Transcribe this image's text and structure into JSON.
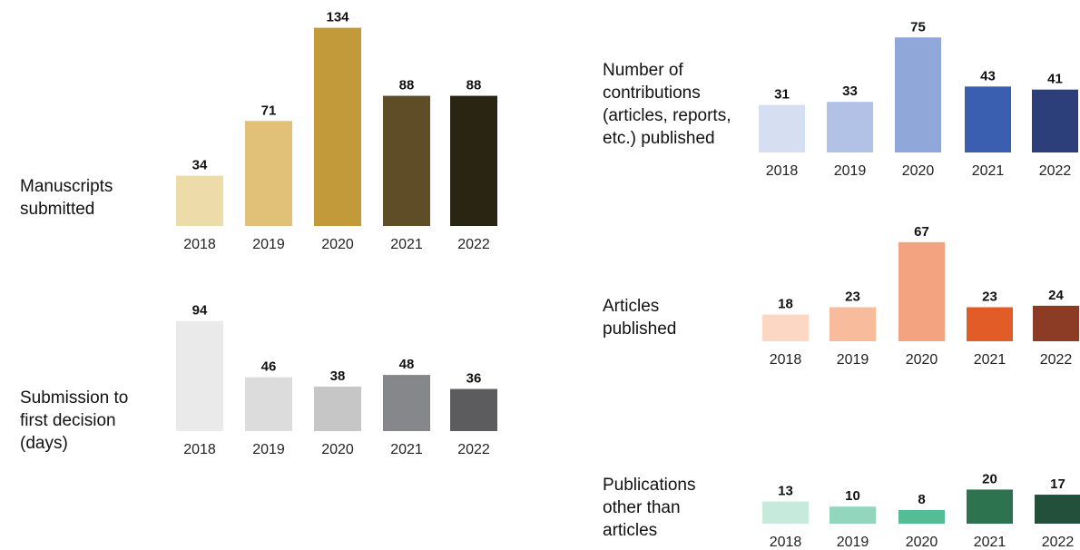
{
  "chart_data": [
    {
      "type": "bar",
      "label_lines": [
        "Manuscripts",
        "submitted"
      ],
      "categories": [
        "2018",
        "2019",
        "2020",
        "2021",
        "2022"
      ],
      "values": [
        34,
        71,
        134,
        88,
        88
      ],
      "colors": [
        "#eddcaa",
        "#e1c078",
        "#c29a3a",
        "#5e4d27",
        "#2a2412"
      ]
    },
    {
      "type": "bar",
      "label_lines": [
        "Submission to",
        "first decision",
        "(days)"
      ],
      "categories": [
        "2018",
        "2019",
        "2020",
        "2021",
        "2022"
      ],
      "values": [
        94,
        46,
        38,
        48,
        36
      ],
      "colors": [
        "#eaeaea",
        "#dcdcdc",
        "#c6c6c6",
        "#86878a",
        "#5c5c5e"
      ]
    },
    {
      "type": "bar",
      "label_lines": [
        "Number of",
        "contributions",
        "(articles, reports,",
        "etc.) published"
      ],
      "categories": [
        "2018",
        "2019",
        "2020",
        "2021",
        "2022"
      ],
      "values": [
        31,
        33,
        75,
        43,
        41
      ],
      "colors": [
        "#d6dff2",
        "#b2c2e6",
        "#8fa8d9",
        "#3a5fb0",
        "#2d3f7a"
      ]
    },
    {
      "type": "bar",
      "label_lines": [
        "Articles",
        "published"
      ],
      "categories": [
        "2018",
        "2019",
        "2020",
        "2021",
        "2022"
      ],
      "values": [
        18,
        23,
        67,
        23,
        24
      ],
      "colors": [
        "#fbd7c4",
        "#f8bb9c",
        "#f4a381",
        "#e25c27",
        "#8c3b24"
      ]
    },
    {
      "type": "bar",
      "label_lines": [
        "Publications",
        "other than",
        "articles"
      ],
      "categories": [
        "2018",
        "2019",
        "2020",
        "2021",
        "2022"
      ],
      "values": [
        13,
        10,
        8,
        20,
        17
      ],
      "colors": [
        "#c6ebdc",
        "#92d7bd",
        "#54bd96",
        "#2e7350",
        "#23503a"
      ]
    }
  ]
}
